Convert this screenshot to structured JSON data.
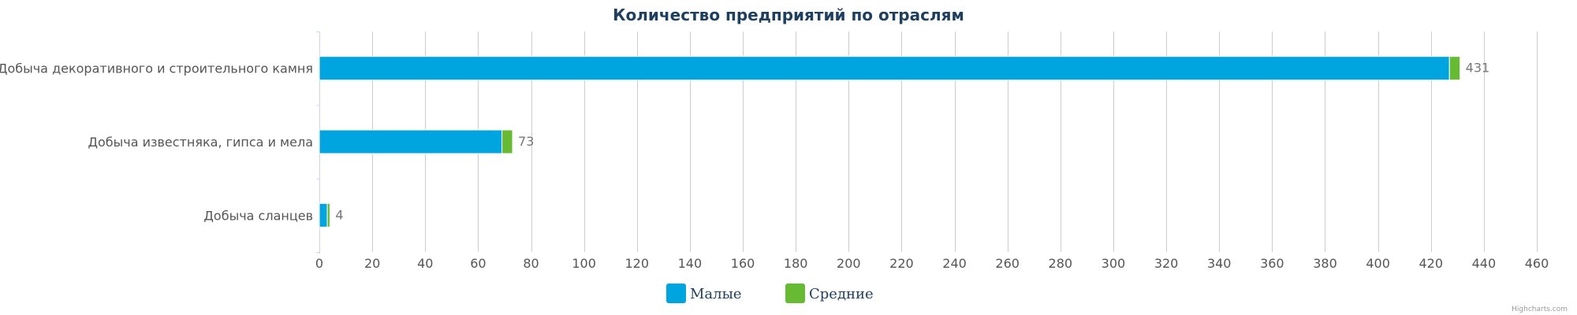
{
  "chart_data": {
    "type": "bar",
    "orientation": "horizontal",
    "stacked": true,
    "title": "Количество предприятий по отраслям",
    "categories": [
      "Добыча декоративного и строительного камня",
      "Добыча известняка, гипса и мела",
      "Добыча сланцев"
    ],
    "series": [
      {
        "name": "Малые",
        "color": "#00a5e0",
        "values": [
          427,
          69,
          3
        ]
      },
      {
        "name": "Средние",
        "color": "#66bb33",
        "values": [
          4,
          4,
          1
        ]
      }
    ],
    "totals": [
      431,
      73,
      4
    ],
    "xticks": [
      0,
      20,
      40,
      60,
      80,
      100,
      120,
      140,
      160,
      180,
      200,
      220,
      240,
      260,
      280,
      300,
      320,
      340,
      360,
      380,
      400,
      420,
      440,
      460
    ],
    "xlim": [
      0,
      460
    ],
    "grid": true,
    "legend_position": "bottom-center"
  },
  "credits": "Highcharts.com"
}
